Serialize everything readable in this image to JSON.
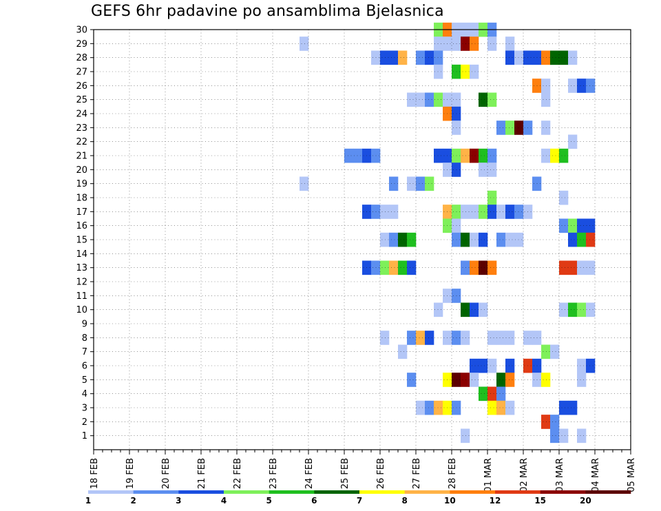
{
  "title": "GEFS 6hr padavine po ansamblima Bjelasnica",
  "chart_data": {
    "type": "heatmap",
    "title": "GEFS 6hr padavine po ansamblima Bjelasnica",
    "x_tick_labels": [
      "18 FEB",
      "19 FEB",
      "20 FEB",
      "21 FEB",
      "22 FEB",
      "23 FEB",
      "24 FEB",
      "25 FEB",
      "26 FEB",
      "27 FEB",
      "28 FEB",
      "01 MAR",
      "02 MAR",
      "03 MAR",
      "04 MAR",
      "05 MAR"
    ],
    "y_tick_labels": [
      "1",
      "2",
      "3",
      "4",
      "5",
      "6",
      "7",
      "8",
      "9",
      "10",
      "11",
      "12",
      "13",
      "14",
      "15",
      "16",
      "17",
      "18",
      "19",
      "20",
      "21",
      "22",
      "23",
      "24",
      "25",
      "26",
      "27",
      "28",
      "29",
      "30"
    ],
    "y_range": [
      0,
      30
    ],
    "x_range_days": [
      0,
      15
    ],
    "time_step_hours": 6,
    "grid": true,
    "legend": {
      "placement": "bottom",
      "labels": [
        "1",
        "2",
        "3",
        "4",
        "5",
        "6",
        "7",
        "8",
        "10",
        "12",
        "15",
        "20"
      ],
      "colors": [
        "#b3c6f7",
        "#5c8ef0",
        "#1a4ee0",
        "#7ef05a",
        "#1fbf1f",
        "#006400",
        "#ffff00",
        "#ffb347",
        "#ff7f0e",
        "#e03a14",
        "#8b0000",
        "#5c0000"
      ]
    },
    "cells_member_step_class": [
      [
        30,
        38,
        4
      ],
      [
        30,
        39,
        9
      ],
      [
        30,
        40,
        1
      ],
      [
        30,
        41,
        1
      ],
      [
        30,
        42,
        1
      ],
      [
        30,
        43,
        4
      ],
      [
        30,
        44,
        2
      ],
      [
        29,
        23,
        1
      ],
      [
        29,
        38,
        1
      ],
      [
        29,
        39,
        1
      ],
      [
        29,
        40,
        1
      ],
      [
        29,
        41,
        11
      ],
      [
        29,
        42,
        9
      ],
      [
        29,
        44,
        1
      ],
      [
        29,
        46,
        1
      ],
      [
        28,
        31,
        1
      ],
      [
        28,
        32,
        3
      ],
      [
        28,
        33,
        3
      ],
      [
        28,
        34,
        8
      ],
      [
        28,
        36,
        2
      ],
      [
        28,
        37,
        3
      ],
      [
        28,
        38,
        2
      ],
      [
        28,
        46,
        3
      ],
      [
        28,
        47,
        1
      ],
      [
        28,
        48,
        3
      ],
      [
        28,
        49,
        3
      ],
      [
        28,
        50,
        9
      ],
      [
        28,
        51,
        6
      ],
      [
        28,
        52,
        6
      ],
      [
        28,
        53,
        1
      ],
      [
        27,
        38,
        1
      ],
      [
        27,
        40,
        5
      ],
      [
        27,
        41,
        7
      ],
      [
        27,
        42,
        1
      ],
      [
        26,
        49,
        9
      ],
      [
        26,
        50,
        1
      ],
      [
        26,
        53,
        1
      ],
      [
        26,
        54,
        3
      ],
      [
        26,
        55,
        2
      ],
      [
        25,
        35,
        1
      ],
      [
        25,
        36,
        1
      ],
      [
        25,
        37,
        2
      ],
      [
        25,
        38,
        4
      ],
      [
        25,
        39,
        1
      ],
      [
        25,
        40,
        1
      ],
      [
        25,
        43,
        6
      ],
      [
        25,
        44,
        4
      ],
      [
        25,
        50,
        1
      ],
      [
        24,
        39,
        9
      ],
      [
        24,
        40,
        3
      ],
      [
        23,
        40,
        1
      ],
      [
        23,
        45,
        2
      ],
      [
        23,
        46,
        4
      ],
      [
        23,
        47,
        12
      ],
      [
        23,
        48,
        2
      ],
      [
        23,
        50,
        1
      ],
      [
        22,
        53,
        1
      ],
      [
        21,
        28,
        2
      ],
      [
        21,
        29,
        2
      ],
      [
        21,
        30,
        3
      ],
      [
        21,
        31,
        2
      ],
      [
        21,
        38,
        3
      ],
      [
        21,
        39,
        3
      ],
      [
        21,
        40,
        4
      ],
      [
        21,
        41,
        8
      ],
      [
        21,
        42,
        11
      ],
      [
        21,
        43,
        5
      ],
      [
        21,
        44,
        2
      ],
      [
        21,
        50,
        1
      ],
      [
        21,
        51,
        7
      ],
      [
        21,
        52,
        5
      ],
      [
        20,
        39,
        1
      ],
      [
        20,
        40,
        3
      ],
      [
        20,
        43,
        1
      ],
      [
        20,
        44,
        1
      ],
      [
        19,
        23,
        1
      ],
      [
        19,
        33,
        2
      ],
      [
        19,
        35,
        1
      ],
      [
        19,
        36,
        2
      ],
      [
        19,
        37,
        4
      ],
      [
        19,
        49,
        2
      ],
      [
        18,
        44,
        4
      ],
      [
        18,
        52,
        1
      ],
      [
        17,
        30,
        3
      ],
      [
        17,
        31,
        2
      ],
      [
        17,
        32,
        1
      ],
      [
        17,
        33,
        1
      ],
      [
        17,
        39,
        8
      ],
      [
        17,
        40,
        4
      ],
      [
        17,
        41,
        1
      ],
      [
        17,
        42,
        1
      ],
      [
        17,
        43,
        4
      ],
      [
        17,
        44,
        3
      ],
      [
        17,
        45,
        1
      ],
      [
        17,
        46,
        3
      ],
      [
        17,
        47,
        2
      ],
      [
        17,
        48,
        1
      ],
      [
        16,
        39,
        4
      ],
      [
        16,
        40,
        1
      ],
      [
        16,
        52,
        2
      ],
      [
        16,
        53,
        4
      ],
      [
        16,
        54,
        3
      ],
      [
        16,
        55,
        3
      ],
      [
        15,
        32,
        1
      ],
      [
        15,
        33,
        2
      ],
      [
        15,
        34,
        6
      ],
      [
        15,
        35,
        5
      ],
      [
        15,
        40,
        2
      ],
      [
        15,
        41,
        6
      ],
      [
        15,
        42,
        1
      ],
      [
        15,
        43,
        3
      ],
      [
        15,
        45,
        2
      ],
      [
        15,
        46,
        1
      ],
      [
        15,
        47,
        1
      ],
      [
        15,
        53,
        3
      ],
      [
        15,
        54,
        5
      ],
      [
        15,
        55,
        10
      ],
      [
        13,
        30,
        3
      ],
      [
        13,
        31,
        2
      ],
      [
        13,
        32,
        4
      ],
      [
        13,
        33,
        8
      ],
      [
        13,
        34,
        5
      ],
      [
        13,
        35,
        3
      ],
      [
        13,
        41,
        2
      ],
      [
        13,
        42,
        9
      ],
      [
        13,
        43,
        12
      ],
      [
        13,
        44,
        9
      ],
      [
        13,
        52,
        10
      ],
      [
        13,
        53,
        10
      ],
      [
        13,
        54,
        1
      ],
      [
        13,
        55,
        1
      ],
      [
        11,
        39,
        1
      ],
      [
        11,
        40,
        2
      ],
      [
        10,
        38,
        1
      ],
      [
        10,
        41,
        6
      ],
      [
        10,
        42,
        3
      ],
      [
        10,
        43,
        1
      ],
      [
        10,
        52,
        1
      ],
      [
        10,
        53,
        5
      ],
      [
        10,
        54,
        4
      ],
      [
        10,
        55,
        1
      ],
      [
        8,
        32,
        1
      ],
      [
        8,
        35,
        2
      ],
      [
        8,
        36,
        8
      ],
      [
        8,
        37,
        3
      ],
      [
        8,
        39,
        1
      ],
      [
        8,
        40,
        2
      ],
      [
        8,
        41,
        1
      ],
      [
        8,
        44,
        1
      ],
      [
        8,
        45,
        1
      ],
      [
        8,
        46,
        1
      ],
      [
        8,
        48,
        1
      ],
      [
        8,
        49,
        1
      ],
      [
        7,
        34,
        1
      ],
      [
        7,
        50,
        4
      ],
      [
        7,
        51,
        1
      ],
      [
        6,
        42,
        3
      ],
      [
        6,
        43,
        3
      ],
      [
        6,
        44,
        1
      ],
      [
        6,
        46,
        3
      ],
      [
        6,
        48,
        10
      ],
      [
        6,
        49,
        3
      ],
      [
        6,
        54,
        1
      ],
      [
        6,
        55,
        3
      ],
      [
        5,
        35,
        2
      ],
      [
        5,
        39,
        7
      ],
      [
        5,
        40,
        12
      ],
      [
        5,
        41,
        11
      ],
      [
        5,
        42,
        1
      ],
      [
        5,
        45,
        6
      ],
      [
        5,
        46,
        9
      ],
      [
        5,
        49,
        1
      ],
      [
        5,
        50,
        7
      ],
      [
        5,
        54,
        1
      ],
      [
        4,
        43,
        5
      ],
      [
        4,
        44,
        10
      ],
      [
        4,
        45,
        2
      ],
      [
        3,
        36,
        1
      ],
      [
        3,
        37,
        2
      ],
      [
        3,
        38,
        8
      ],
      [
        3,
        39,
        7
      ],
      [
        3,
        40,
        2
      ],
      [
        3,
        44,
        7
      ],
      [
        3,
        45,
        8
      ],
      [
        3,
        46,
        1
      ],
      [
        3,
        52,
        3
      ],
      [
        3,
        53,
        3
      ],
      [
        2,
        50,
        10
      ],
      [
        2,
        51,
        2
      ],
      [
        1,
        41,
        1
      ],
      [
        1,
        51,
        2
      ],
      [
        1,
        52,
        1
      ],
      [
        1,
        54,
        1
      ]
    ]
  }
}
